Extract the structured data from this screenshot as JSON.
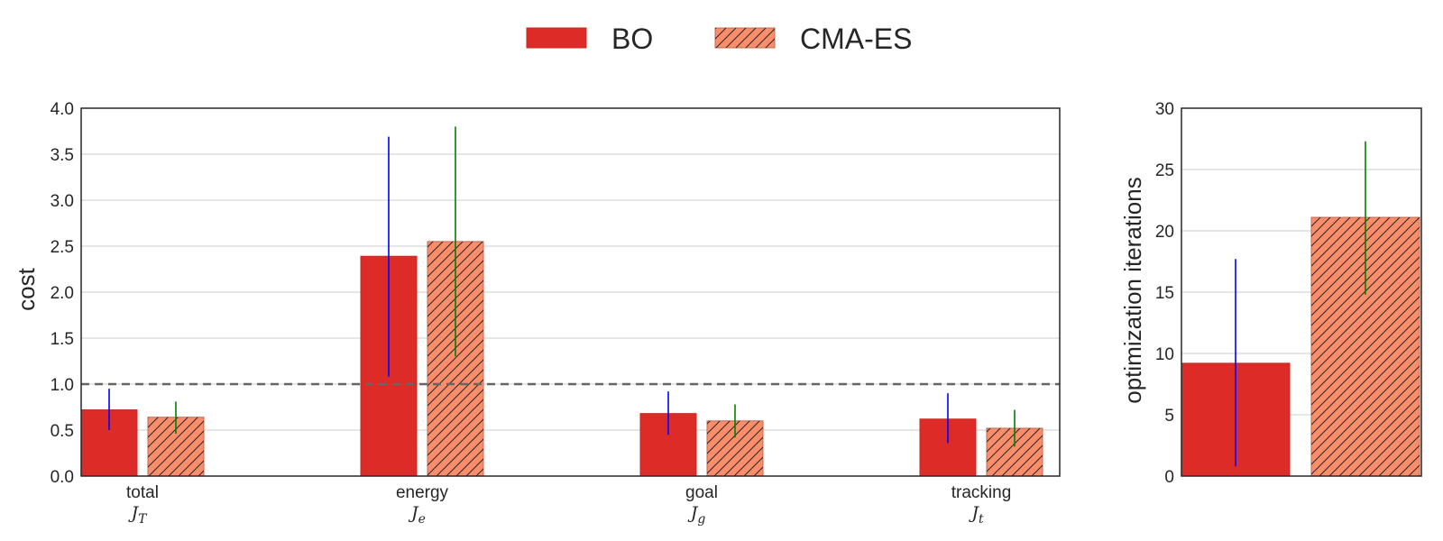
{
  "legend": {
    "entries": [
      {
        "label": "BO",
        "style": "solid",
        "color": "#dd2c27"
      },
      {
        "label": "CMA-ES",
        "style": "hatched",
        "color": "#fc8d6a"
      }
    ],
    "placement": "top-center"
  },
  "colors": {
    "bo_fill": "#dd2c27",
    "cma_fill": "#fc8d6a",
    "bo_error": "#0000ff",
    "cma_error": "#008000",
    "grid": "#cccccc",
    "reference_line": "#666666",
    "axis": "#262626"
  },
  "chart_data": [
    {
      "type": "bar",
      "ylabel": "cost",
      "ylim": [
        0,
        4
      ],
      "yticks": [
        "0.0",
        "0.5",
        "1.0",
        "1.5",
        "2.0",
        "2.5",
        "3.0",
        "3.5",
        "4.0"
      ],
      "grid": true,
      "reference_line": {
        "y": 1.0,
        "style": "dashed"
      },
      "categories": [
        {
          "label": "total",
          "symbol": "J",
          "subscript": "T"
        },
        {
          "label": "energy",
          "symbol": "J",
          "subscript": "e"
        },
        {
          "label": "goal",
          "symbol": "J",
          "subscript": "g"
        },
        {
          "label": "tracking",
          "symbol": "J",
          "subscript": "t"
        }
      ],
      "series": [
        {
          "name": "BO",
          "values": [
            0.72,
            2.39,
            0.68,
            0.62
          ],
          "error_low": [
            0.5,
            1.08,
            0.45,
            0.36
          ],
          "error_high": [
            0.95,
            3.69,
            0.92,
            0.9
          ]
        },
        {
          "name": "CMA-ES",
          "values": [
            0.64,
            2.55,
            0.6,
            0.52
          ],
          "error_low": [
            0.46,
            1.3,
            0.42,
            0.32
          ],
          "error_high": [
            0.81,
            3.8,
            0.78,
            0.72
          ]
        }
      ]
    },
    {
      "type": "bar",
      "ylabel": "optimization iterations",
      "ylim": [
        0,
        30
      ],
      "yticks": [
        "0",
        "5",
        "10",
        "15",
        "20",
        "25",
        "30"
      ],
      "grid": true,
      "series": [
        {
          "name": "BO",
          "values": [
            9.2
          ],
          "error_low": [
            0.8
          ],
          "error_high": [
            17.7
          ]
        },
        {
          "name": "CMA-ES",
          "values": [
            21.1
          ],
          "error_low": [
            14.8
          ],
          "error_high": [
            27.3
          ]
        }
      ]
    }
  ]
}
